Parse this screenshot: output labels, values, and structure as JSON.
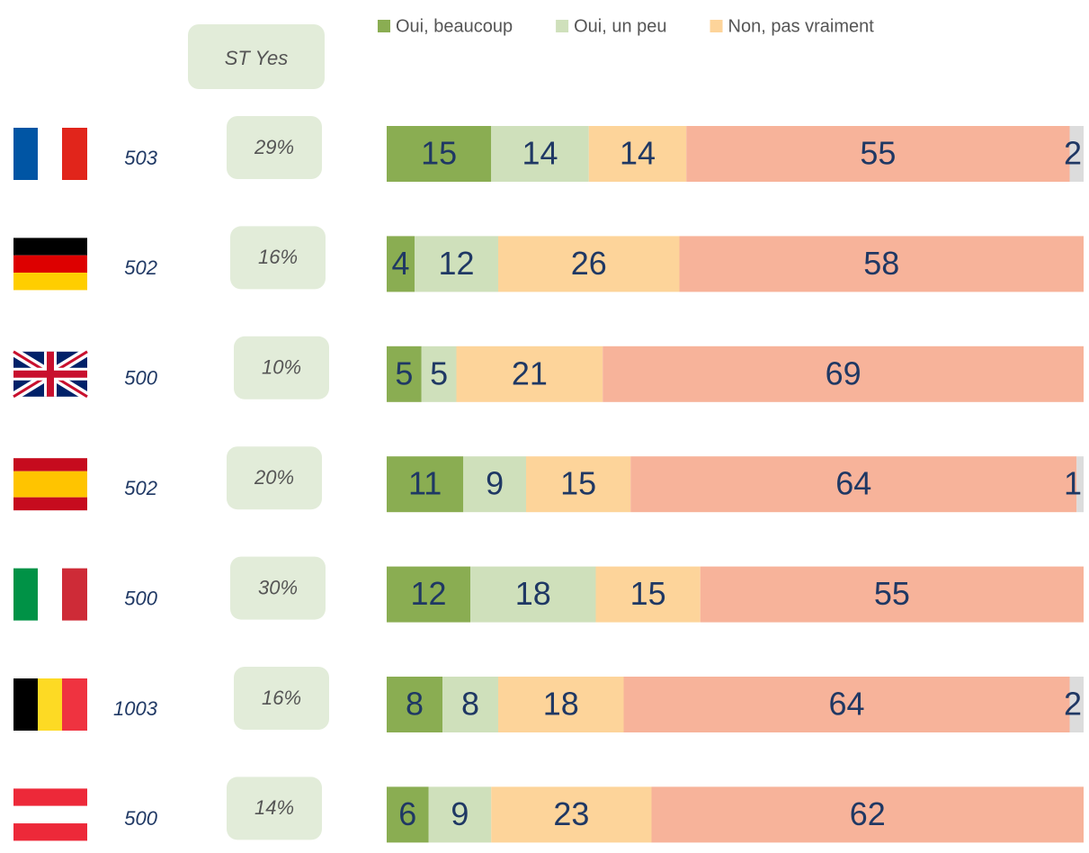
{
  "chart_data": {
    "type": "stacked-bar-horizontal",
    "categories": [
      null,
      null,
      null,
      null,
      null,
      null,
      null
    ],
    "sample_sizes": [
      503,
      502,
      500,
      502,
      500,
      1003,
      500
    ],
    "st_yes": {
      "title": "ST Yes",
      "labels": [
        "29%",
        "16%",
        "10%",
        "20%",
        "30%",
        "16%",
        "14%"
      ]
    },
    "xlim": [
      0,
      100
    ],
    "series": [
      {
        "name": "Oui, beaucoup",
        "color": "#8aad52",
        "values": [
          15,
          4,
          5,
          11,
          12,
          8,
          6
        ]
      },
      {
        "name": "Oui, un peu",
        "color": "#cfe0bb",
        "values": [
          14,
          12,
          5,
          9,
          18,
          8,
          9
        ]
      },
      {
        "name": "Non, pas vraiment",
        "color": "#fdd49a",
        "values": [
          14,
          26,
          21,
          15,
          15,
          18,
          23
        ]
      },
      {
        "color": "#f7b39a",
        "values": [
          55,
          58,
          69,
          64,
          55,
          64,
          62
        ]
      },
      {
        "color": "#dcdcdc",
        "values": [
          2,
          null,
          null,
          1,
          null,
          2,
          null
        ]
      }
    ]
  }
}
